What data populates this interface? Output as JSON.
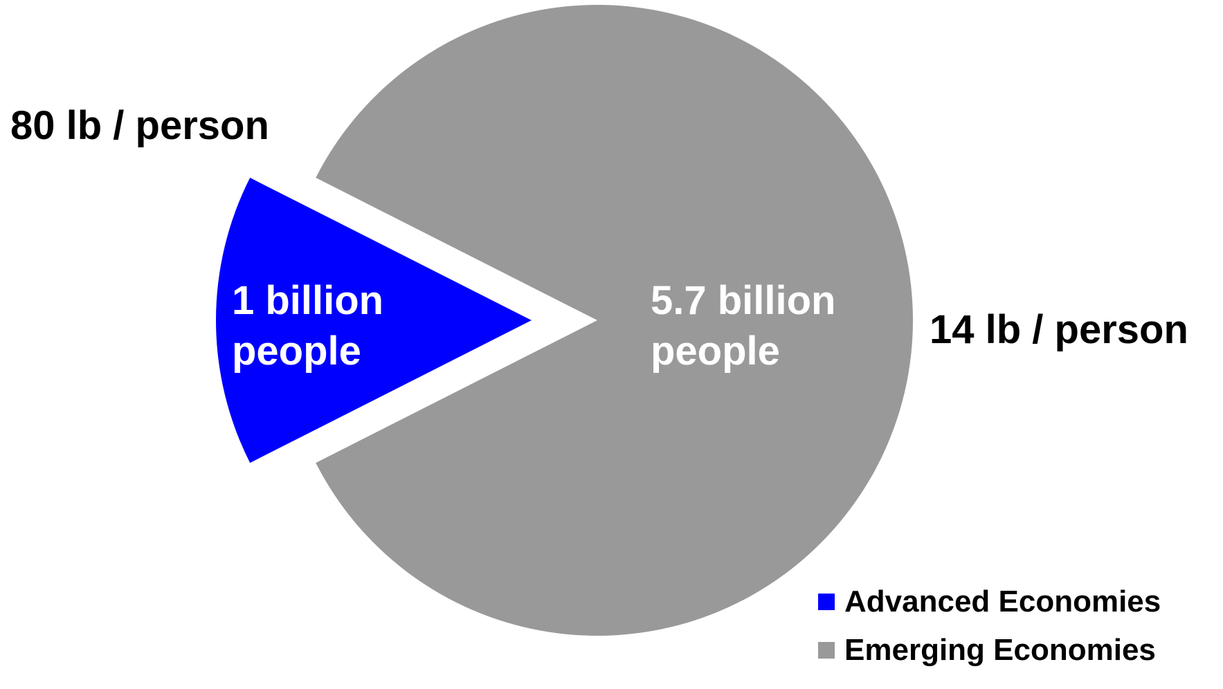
{
  "chart_data": {
    "type": "pie",
    "title": "",
    "slices": [
      {
        "name": "Advanced Economies",
        "value": 1,
        "label_lines": [
          "1 billion",
          "people"
        ],
        "outer_label": "80 lb / person",
        "color": "#0000ff",
        "exploded": true
      },
      {
        "name": "Emerging Economies",
        "value": 5.7,
        "label_lines": [
          "5.7 billion",
          "people"
        ],
        "outer_label": "14 lb / person",
        "color": "#999999",
        "exploded": false
      }
    ],
    "legend": {
      "placement": "bottom-right",
      "entries": [
        "Advanced Economies",
        "Emerging Economies"
      ]
    },
    "inner_label_color": "#ffffff",
    "outer_label_color": "#000000"
  }
}
